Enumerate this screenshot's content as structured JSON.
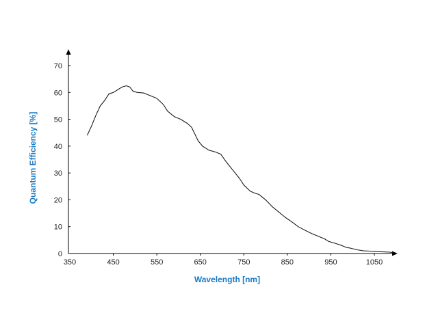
{
  "chart_data": {
    "type": "line",
    "title": "",
    "xlabel": "Wavelength [nm]",
    "ylabel": "Quantum Efficiency [%]",
    "xlim": [
      350,
      1100
    ],
    "ylim": [
      0,
      70
    ],
    "x_ticks": [
      "350",
      "450",
      "550",
      "650",
      "750",
      "850",
      "950",
      "1050"
    ],
    "y_ticks": [
      "0",
      "10",
      "20",
      "30",
      "40",
      "50",
      "60",
      "70"
    ],
    "grid": false,
    "legend": "none",
    "colors": {
      "axis_title": "#1a7ac4",
      "line": "#1a1a1a",
      "axis": "#000000"
    },
    "series": [
      {
        "values": [
          [
            390,
            44
          ],
          [
            400,
            47.5
          ],
          [
            410,
            51.5
          ],
          [
            420,
            55
          ],
          [
            430,
            57
          ],
          [
            440,
            59.5
          ],
          [
            450,
            60
          ],
          [
            460,
            61
          ],
          [
            470,
            62
          ],
          [
            480,
            62.5
          ],
          [
            488,
            62
          ],
          [
            495,
            60.5
          ],
          [
            505,
            60
          ],
          [
            520,
            59.8
          ],
          [
            535,
            58.8
          ],
          [
            550,
            57.8
          ],
          [
            565,
            55.5
          ],
          [
            575,
            53
          ],
          [
            590,
            51
          ],
          [
            605,
            50
          ],
          [
            620,
            48.5
          ],
          [
            630,
            47
          ],
          [
            645,
            42
          ],
          [
            655,
            40
          ],
          [
            670,
            38.5
          ],
          [
            685,
            37.8
          ],
          [
            697,
            37
          ],
          [
            710,
            34
          ],
          [
            725,
            31
          ],
          [
            740,
            28
          ],
          [
            750,
            25.5
          ],
          [
            765,
            23.2
          ],
          [
            775,
            22.5
          ],
          [
            785,
            22
          ],
          [
            800,
            20
          ],
          [
            815,
            17.5
          ],
          [
            830,
            15.5
          ],
          [
            845,
            13.5
          ],
          [
            860,
            11.8
          ],
          [
            875,
            10
          ],
          [
            890,
            8.7
          ],
          [
            905,
            7.5
          ],
          [
            920,
            6.5
          ],
          [
            935,
            5.5
          ],
          [
            945,
            4.5
          ],
          [
            960,
            3.8
          ],
          [
            975,
            3
          ],
          [
            985,
            2.3
          ],
          [
            995,
            2
          ],
          [
            1010,
            1.4
          ],
          [
            1025,
            1
          ],
          [
            1040,
            0.9
          ],
          [
            1055,
            0.7
          ],
          [
            1070,
            0.6
          ],
          [
            1085,
            0.5
          ],
          [
            1095,
            0.3
          ]
        ]
      }
    ]
  }
}
